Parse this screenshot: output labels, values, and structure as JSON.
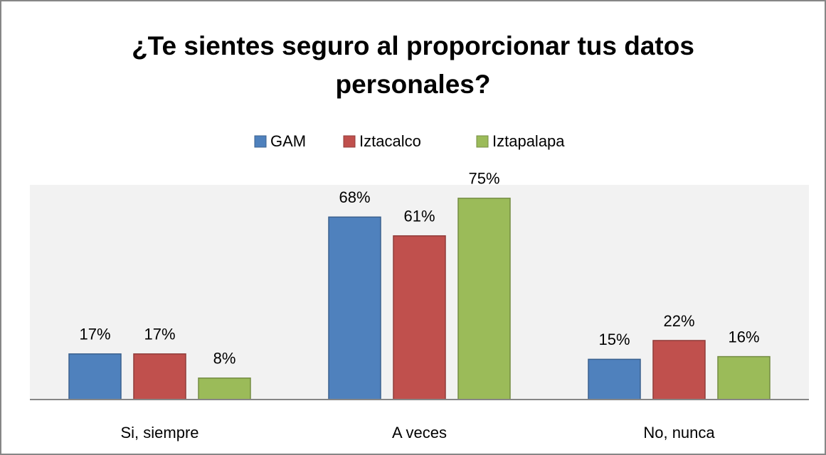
{
  "chart_data": {
    "type": "bar",
    "title": "¿Te sientes seguro al proporcionar tus datos personales?",
    "categories": [
      "Si, siempre",
      "A veces",
      "No, nunca"
    ],
    "series": [
      {
        "name": "GAM",
        "color": "#4f81bd",
        "values": [
          17,
          68,
          15
        ],
        "value_labels": [
          "17%",
          "68%",
          "15%"
        ]
      },
      {
        "name": "Iztacalco",
        "color": "#c0504d",
        "values": [
          17,
          61,
          22
        ],
        "value_labels": [
          "17%",
          "61%",
          "22%"
        ]
      },
      {
        "name": "Iztapalapa",
        "color": "#9bbb59",
        "values": [
          8,
          75,
          16
        ],
        "value_labels": [
          "8%",
          "75%",
          "16%"
        ]
      }
    ],
    "ylim": [
      0,
      80
    ]
  }
}
